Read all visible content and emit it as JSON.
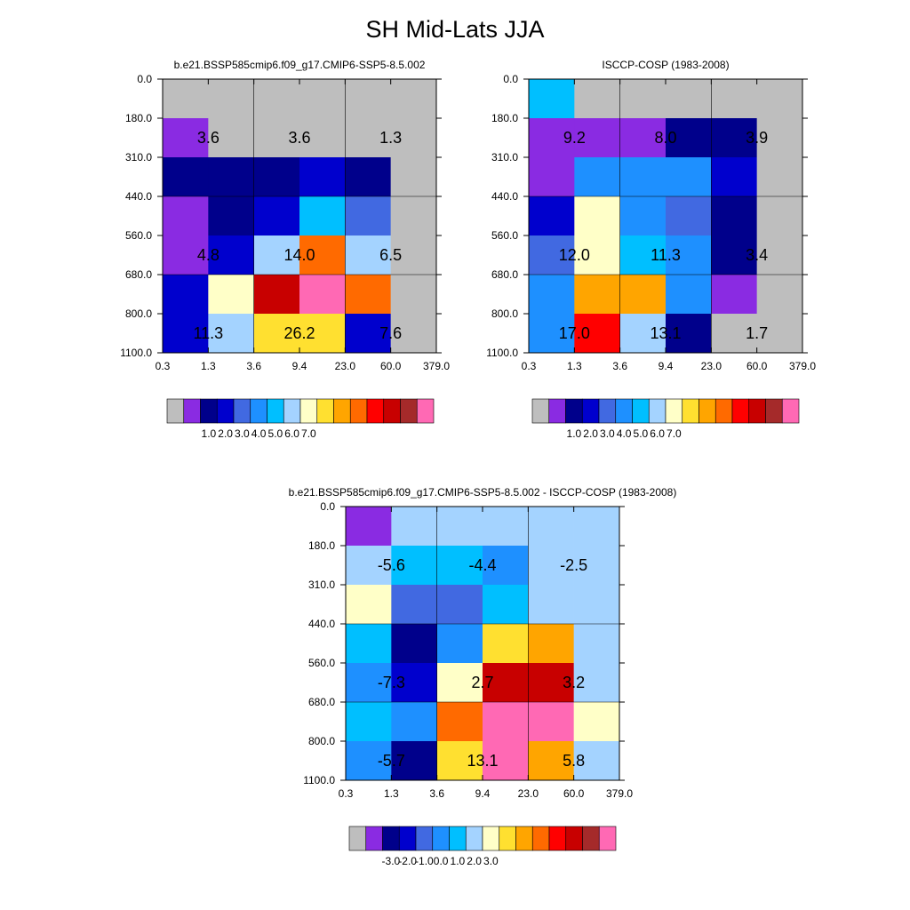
{
  "page": {
    "title": "SH Mid-Lats JJA"
  },
  "colors": {
    "std": [
      "#bebebe",
      "#8a2be2",
      "#00008b",
      "#0000cd",
      "#4169e1",
      "#1e90ff",
      "#00bfff",
      "#a4d3ff",
      "#ffffc8",
      "#ffe030",
      "#ffa500",
      "#ff6a00",
      "#ff0000",
      "#c80000",
      "#a52a2a",
      "#ff69b4"
    ],
    "diff": [
      "#bebebe",
      "#8a2be2",
      "#00008b",
      "#0000cd",
      "#4169e1",
      "#1e90ff",
      "#00bfff",
      "#a4d3ff",
      "#ffffc8",
      "#ffe030",
      "#ffa500",
      "#ff6a00",
      "#ff0000",
      "#c80000",
      "#a52a2a",
      "#ff69b4"
    ],
    "cell_levels_note": "each cell value is an index into the panel's colour list (ordered top row first, left to right)"
  },
  "chart_data": [
    {
      "type": "heatmap",
      "title": "b.e21.BSSP585cmip6.f09_g17.CMIP6-SSP5-8.5.002",
      "x_ticks": [
        "0.3",
        "1.3",
        "3.6",
        "9.4",
        "23.0",
        "60.0",
        "379.0"
      ],
      "y_ticks": [
        "0.0",
        "180.0",
        "310.0",
        "440.0",
        "560.0",
        "680.0",
        "800.0",
        "1100.0"
      ],
      "cells": [
        [
          0,
          0,
          0,
          0,
          0,
          0
        ],
        [
          1,
          0,
          0,
          0,
          0,
          0
        ],
        [
          2,
          2,
          2,
          3,
          2,
          0
        ],
        [
          1,
          2,
          3,
          6,
          4,
          0
        ],
        [
          1,
          3,
          7,
          11,
          7,
          0
        ],
        [
          3,
          8,
          13,
          15,
          11,
          0
        ],
        [
          3,
          7,
          9,
          9,
          3,
          0
        ]
      ],
      "labels": [
        {
          "t": "3.6",
          "col": 1,
          "row": 1
        },
        {
          "t": "3.6",
          "col": 3,
          "row": 1
        },
        {
          "t": "1.3",
          "col": 5,
          "row": 1
        },
        {
          "t": "4.8",
          "col": 1,
          "row": 4
        },
        {
          "t": "14.0",
          "col": 3,
          "row": 4
        },
        {
          "t": "6.5",
          "col": 5,
          "row": 4
        },
        {
          "t": "11.3",
          "col": 1,
          "row": 6
        },
        {
          "t": "26.2",
          "col": 3,
          "row": 6
        },
        {
          "t": "7.6",
          "col": 5,
          "row": 6
        }
      ],
      "legend_labels": [
        "1.0",
        "2.0",
        "3.0",
        "4.0",
        "5.0",
        "6.0",
        "7.0"
      ]
    },
    {
      "type": "heatmap",
      "title": "ISCCP-COSP (1983-2008)",
      "x_ticks": [
        "0.3",
        "1.3",
        "3.6",
        "9.4",
        "23.0",
        "60.0",
        "379.0"
      ],
      "y_ticks": [
        "0.0",
        "180.0",
        "310.0",
        "440.0",
        "560.0",
        "680.0",
        "800.0",
        "1100.0"
      ],
      "cells": [
        [
          6,
          0,
          0,
          0,
          0,
          0
        ],
        [
          1,
          1,
          1,
          2,
          2,
          0
        ],
        [
          1,
          5,
          5,
          5,
          3,
          0
        ],
        [
          3,
          8,
          5,
          4,
          2,
          0
        ],
        [
          4,
          8,
          6,
          5,
          2,
          0
        ],
        [
          5,
          10,
          10,
          5,
          1,
          0
        ],
        [
          5,
          12,
          7,
          2,
          0,
          0
        ]
      ],
      "labels": [
        {
          "t": "9.2",
          "col": 1,
          "row": 1
        },
        {
          "t": "8.0",
          "col": 3,
          "row": 1
        },
        {
          "t": "3.9",
          "col": 5,
          "row": 1
        },
        {
          "t": "12.0",
          "col": 1,
          "row": 4
        },
        {
          "t": "11.3",
          "col": 3,
          "row": 4
        },
        {
          "t": "3.4",
          "col": 5,
          "row": 4
        },
        {
          "t": "17.0",
          "col": 1,
          "row": 6
        },
        {
          "t": "13.1",
          "col": 3,
          "row": 6
        },
        {
          "t": "1.7",
          "col": 5,
          "row": 6
        }
      ],
      "legend_labels": [
        "1.0",
        "2.0",
        "3.0",
        "4.0",
        "5.0",
        "6.0",
        "7.0"
      ]
    },
    {
      "type": "heatmap",
      "title": "b.e21.BSSP585cmip6.f09_g17.CMIP6-SSP5-8.5.002 - ISCCP-COSP (1983-2008)",
      "x_ticks": [
        "0.3",
        "1.3",
        "3.6",
        "9.4",
        "23.0",
        "60.0",
        "379.0"
      ],
      "y_ticks": [
        "0.0",
        "180.0",
        "310.0",
        "440.0",
        "560.0",
        "680.0",
        "800.0",
        "1100.0"
      ],
      "cells": [
        [
          1,
          7,
          7,
          7,
          7,
          7
        ],
        [
          7,
          6,
          6,
          5,
          7,
          7
        ],
        [
          8,
          4,
          4,
          6,
          7,
          7
        ],
        [
          6,
          2,
          5,
          9,
          10,
          7
        ],
        [
          5,
          3,
          8,
          13,
          13,
          7
        ],
        [
          6,
          5,
          11,
          15,
          15,
          8
        ],
        [
          5,
          2,
          9,
          15,
          10,
          7
        ]
      ],
      "labels": [
        {
          "t": "-5.6",
          "col": 1,
          "row": 1
        },
        {
          "t": "-4.4",
          "col": 3,
          "row": 1
        },
        {
          "t": "-2.5",
          "col": 5,
          "row": 1
        },
        {
          "t": "-7.3",
          "col": 1,
          "row": 4
        },
        {
          "t": "2.7",
          "col": 3,
          "row": 4
        },
        {
          "t": "3.2",
          "col": 5,
          "row": 4
        },
        {
          "t": "-5.7",
          "col": 1,
          "row": 6
        },
        {
          "t": "13.1",
          "col": 3,
          "row": 6
        },
        {
          "t": "5.8",
          "col": 5,
          "row": 6
        }
      ],
      "legend_labels": [
        "-3.0",
        "-2.0",
        "-1.0",
        "0.0",
        "1.0",
        "2.0",
        "3.0"
      ]
    }
  ]
}
